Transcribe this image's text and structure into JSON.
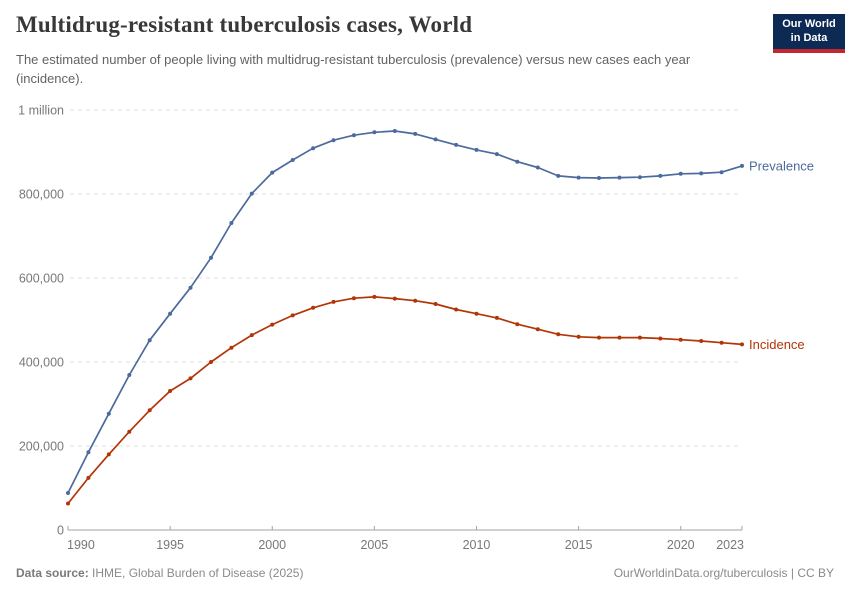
{
  "header": {
    "title": "Multidrug-resistant tuberculosis cases, World",
    "subtitle": "The estimated number of people living with multidrug-resistant tuberculosis (prevalence) versus new cases each year (incidence).",
    "logo": {
      "line1": "Our World",
      "line2": "in Data",
      "bg_color": "#0d2a54",
      "bar_color": "#c0282d"
    }
  },
  "chart_data": {
    "type": "line",
    "title": "Multidrug-resistant tuberculosis cases, World",
    "xlabel": "",
    "ylabel": "",
    "xlim": [
      1990,
      2023
    ],
    "ylim": [
      0,
      1000000
    ],
    "grid": "horizontal-dashed",
    "legend_position": "line-end-labels",
    "x_ticks": [
      1990,
      1995,
      2000,
      2005,
      2010,
      2015,
      2020,
      2023
    ],
    "y_ticks": [
      {
        "value": 0,
        "label": "0"
      },
      {
        "value": 200000,
        "label": "200,000"
      },
      {
        "value": 400000,
        "label": "400,000"
      },
      {
        "value": 600000,
        "label": "600,000"
      },
      {
        "value": 800000,
        "label": "800,000"
      },
      {
        "value": 1000000,
        "label": "1 million"
      }
    ],
    "x": [
      1990,
      1991,
      1992,
      1993,
      1994,
      1995,
      1996,
      1997,
      1998,
      1999,
      2000,
      2001,
      2002,
      2003,
      2004,
      2005,
      2006,
      2007,
      2008,
      2009,
      2010,
      2011,
      2012,
      2013,
      2014,
      2015,
      2016,
      2017,
      2018,
      2019,
      2020,
      2021,
      2022,
      2023
    ],
    "series": [
      {
        "name": "Prevalence",
        "color": "#4C6A9C",
        "values": [
          88000,
          185000,
          277000,
          369000,
          452000,
          515000,
          577000,
          648000,
          731000,
          801000,
          851000,
          881000,
          909000,
          928000,
          940000,
          947000,
          950000,
          943000,
          930000,
          917000,
          905000,
          895000,
          877000,
          863000,
          843000,
          839000,
          838000,
          839000,
          840000,
          843000,
          848000,
          849000,
          852000,
          867000
        ]
      },
      {
        "name": "Incidence",
        "color": "#B13507",
        "values": [
          63000,
          124000,
          180000,
          234000,
          285000,
          331000,
          361000,
          400000,
          434000,
          464000,
          489000,
          511000,
          529000,
          543000,
          552000,
          555000,
          551000,
          546000,
          538000,
          525000,
          515000,
          505000,
          490000,
          478000,
          466000,
          460000,
          458000,
          458000,
          458000,
          456000,
          453000,
          450000,
          446000,
          442000
        ]
      }
    ]
  },
  "footer": {
    "source_label": "Data source:",
    "source_text": " IHME, Global Burden of Disease (2025)",
    "link_text": "OurWorldinData.org/tuberculosis | CC BY"
  }
}
